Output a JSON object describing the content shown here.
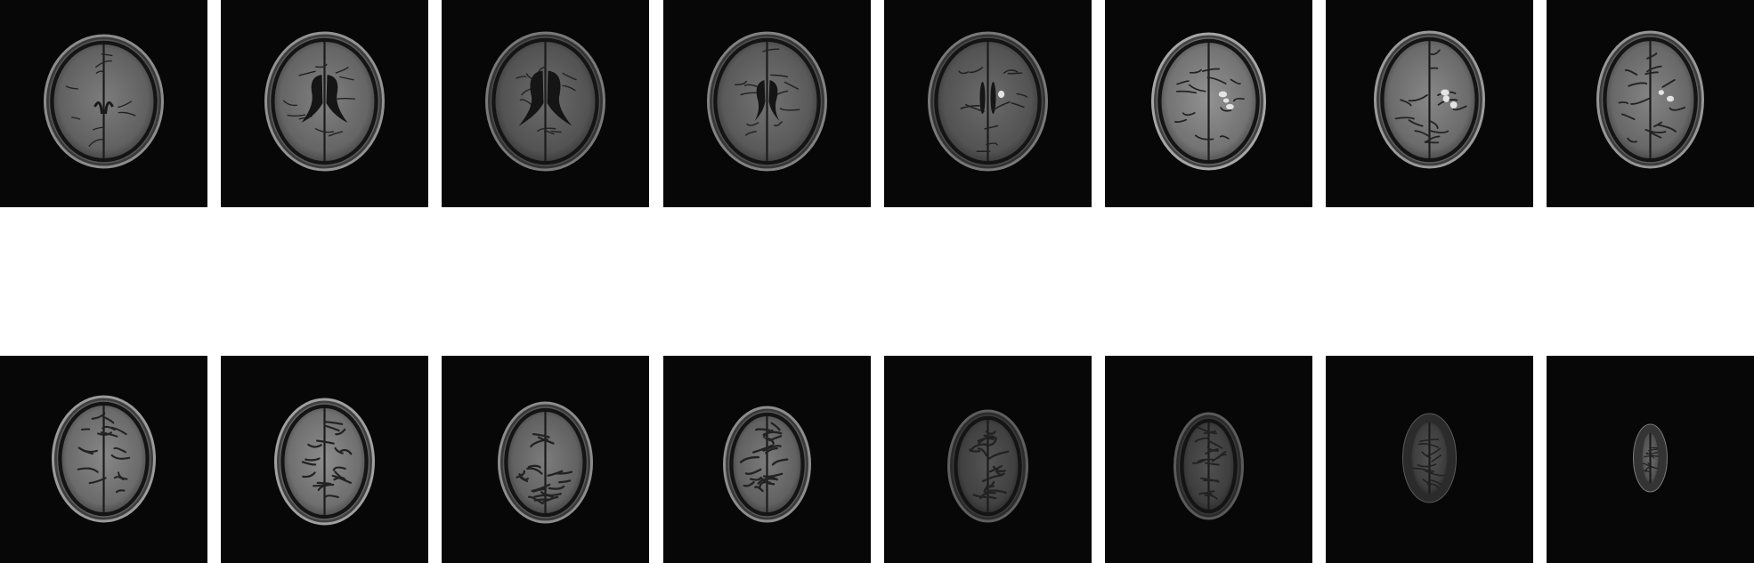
{
  "figure": {
    "rows": [
      {
        "id": "top",
        "slices": [
          {
            "id": 1,
            "structure": "brain-axial-basal",
            "sulcal_emphasis": 0.2,
            "ventricle": "small",
            "brightness": 0.55,
            "lesions": 0
          },
          {
            "id": 2,
            "structure": "brain-axial-ventricles",
            "sulcal_emphasis": 0.25,
            "ventricle": "butterfly",
            "brightness": 0.58,
            "lesions": 0
          },
          {
            "id": 3,
            "structure": "brain-axial-ventricles",
            "sulcal_emphasis": 0.25,
            "ventricle": "butterfly-large",
            "brightness": 0.45,
            "lesions": 0
          },
          {
            "id": 4,
            "structure": "brain-axial-ventricles",
            "sulcal_emphasis": 0.3,
            "ventricle": "narrow",
            "brightness": 0.5,
            "lesions": 0
          },
          {
            "id": 5,
            "structure": "brain-axial-ventricles",
            "sulcal_emphasis": 0.35,
            "ventricle": "slit",
            "brightness": 0.45,
            "lesions": 1
          },
          {
            "id": 6,
            "structure": "brain-axial-centrum",
            "sulcal_emphasis": 0.45,
            "ventricle": "none",
            "brightness": 0.68,
            "lesions": 3
          },
          {
            "id": 7,
            "structure": "brain-axial-centrum",
            "sulcal_emphasis": 0.5,
            "ventricle": "none",
            "brightness": 0.62,
            "lesions": 3
          },
          {
            "id": 8,
            "structure": "brain-axial-centrum",
            "sulcal_emphasis": 0.55,
            "ventricle": "none",
            "brightness": 0.6,
            "lesions": 2
          }
        ]
      },
      {
        "id": "bottom",
        "slices": [
          {
            "id": 9,
            "structure": "brain-axial-high-convexity",
            "sulcal_emphasis": 0.65,
            "ventricle": "none",
            "brightness": 0.62,
            "lesions": 0
          },
          {
            "id": 10,
            "structure": "brain-axial-high-convexity",
            "sulcal_emphasis": 0.75,
            "ventricle": "none",
            "brightness": 0.65,
            "lesions": 0
          },
          {
            "id": 11,
            "structure": "brain-axial-high-convexity",
            "sulcal_emphasis": 0.8,
            "ventricle": "none",
            "brightness": 0.55,
            "lesions": 0
          },
          {
            "id": 12,
            "structure": "brain-axial-vertex",
            "sulcal_emphasis": 0.85,
            "ventricle": "none",
            "brightness": 0.55,
            "lesions": 0
          },
          {
            "id": 13,
            "structure": "brain-axial-vertex",
            "sulcal_emphasis": 0.8,
            "ventricle": "none",
            "brightness": 0.32,
            "lesions": 0
          },
          {
            "id": 14,
            "structure": "brain-axial-vertex",
            "sulcal_emphasis": 0.6,
            "ventricle": "none",
            "brightness": 0.3,
            "lesions": 0
          },
          {
            "id": 15,
            "structure": "brain-axial-vertex-tip",
            "sulcal_emphasis": 0.4,
            "ventricle": "none",
            "brightness": 0.3,
            "lesions": 0
          },
          {
            "id": 16,
            "structure": "brain-axial-vertex-tip",
            "sulcal_emphasis": 0.2,
            "ventricle": "none",
            "brightness": 0.45,
            "lesions": 0
          }
        ]
      }
    ],
    "colors": {
      "background": "#ffffff",
      "tile": "#070707",
      "tissue": "#8a8a8a",
      "scalp": "#b0b0b0",
      "csf": "#1a1a1a"
    }
  }
}
